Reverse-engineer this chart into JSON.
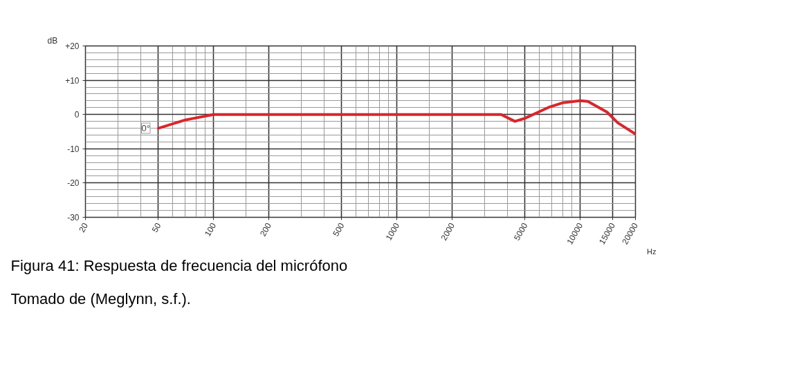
{
  "chart_data": {
    "type": "line",
    "xlabel": "Hz",
    "ylabel": "dB",
    "log": "x",
    "grid": true,
    "line_style": "solid",
    "xlim": [
      20,
      20000
    ],
    "ylim": [
      -30,
      20
    ],
    "xticks": [
      20,
      {
        "value": 30,
        "label": null
      },
      {
        "value": 40,
        "label": null
      },
      50,
      {
        "value": 60,
        "label": null
      },
      {
        "value": 70,
        "label": null
      },
      {
        "value": 80,
        "label": null
      },
      {
        "value": 90,
        "label": null
      },
      100,
      {
        "value": 150,
        "label": null
      },
      200,
      {
        "value": 300,
        "label": null
      },
      {
        "value": 400,
        "label": null
      },
      500,
      {
        "value": 600,
        "label": null
      },
      {
        "value": 700,
        "label": null
      },
      {
        "value": 800,
        "label": null
      },
      {
        "value": 900,
        "label": null
      },
      1000,
      {
        "value": 1500,
        "label": null
      },
      2000,
      {
        "value": 3000,
        "label": null
      },
      {
        "value": 4000,
        "label": null
      },
      5000,
      {
        "value": 6000,
        "label": null
      },
      {
        "value": 7000,
        "label": null
      },
      {
        "value": 8000,
        "label": null
      },
      {
        "value": 9000,
        "label": null
      },
      10000,
      15000,
      20000
    ],
    "yticks": [
      -30,
      {
        "value": -28,
        "label": null
      },
      {
        "value": -26,
        "label": null
      },
      {
        "value": -24,
        "label": null
      },
      {
        "value": -22,
        "label": null
      },
      -20,
      {
        "value": -18,
        "label": null
      },
      {
        "value": -16,
        "label": null
      },
      {
        "value": -14,
        "label": null
      },
      {
        "value": -12,
        "label": null
      },
      -10,
      {
        "value": -8,
        "label": null
      },
      {
        "value": -6,
        "label": null
      },
      {
        "value": -4,
        "label": null
      },
      {
        "value": -2,
        "label": null
      },
      0,
      {
        "value": 2,
        "label": null
      },
      {
        "value": 4,
        "label": null
      },
      {
        "value": 6,
        "label": null
      },
      {
        "value": 8,
        "label": null
      },
      {
        "value": 10,
        "label": "+10"
      },
      {
        "value": 12,
        "label": null
      },
      {
        "value": 14,
        "label": null
      },
      {
        "value": 16,
        "label": null
      },
      {
        "value": 18,
        "label": null
      },
      {
        "value": 20,
        "label": "+20"
      }
    ],
    "series": [
      {
        "name": "0°",
        "color": "#d9262b",
        "x": [
          50,
          70,
          100,
          500,
          1000,
          3700,
          4400,
          5000,
          6800,
          8000,
          10000,
          11000,
          14000,
          16000,
          20000
        ],
        "values": [
          -4,
          -1.6,
          0,
          0,
          0,
          0,
          -2,
          -1.1,
          2.2,
          3.4,
          4,
          3.8,
          0.7,
          -2.4,
          -5.7
        ]
      }
    ],
    "annotations": [
      "Figura 41: Respuesta de frecuencia del micrófono",
      "Tomado de (Meglynn, s.f.)."
    ]
  }
}
